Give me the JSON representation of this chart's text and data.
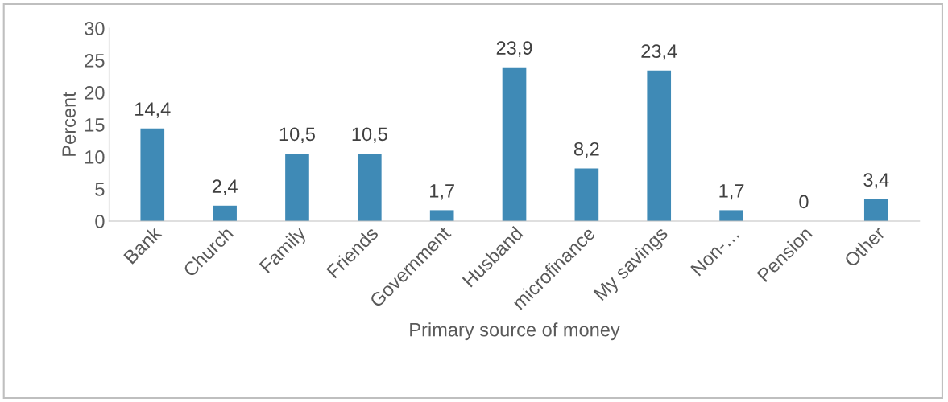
{
  "chart_data": {
    "type": "bar",
    "xlabel": "Primary source of money",
    "ylabel": "Percent",
    "categories": [
      "Bank",
      "Church",
      "Family",
      "Friends",
      "Government",
      "Husband",
      "microfinance",
      "My savings",
      "Non-…",
      "Pension",
      "Other"
    ],
    "values": [
      14.4,
      2.4,
      10.5,
      10.5,
      1.7,
      23.9,
      8.2,
      23.4,
      1.7,
      0,
      3.4
    ],
    "value_labels": [
      "14,4",
      "2,4",
      "10,5",
      "10,5",
      "1,7",
      "23,9",
      "8,2",
      "23,4",
      "1,7",
      "0",
      "3,4"
    ],
    "color": "#3f8ab6",
    "ylim": [
      0,
      30
    ],
    "yticks": [
      0,
      5,
      10,
      15,
      20,
      25,
      30
    ],
    "grid": false,
    "legend": false
  }
}
